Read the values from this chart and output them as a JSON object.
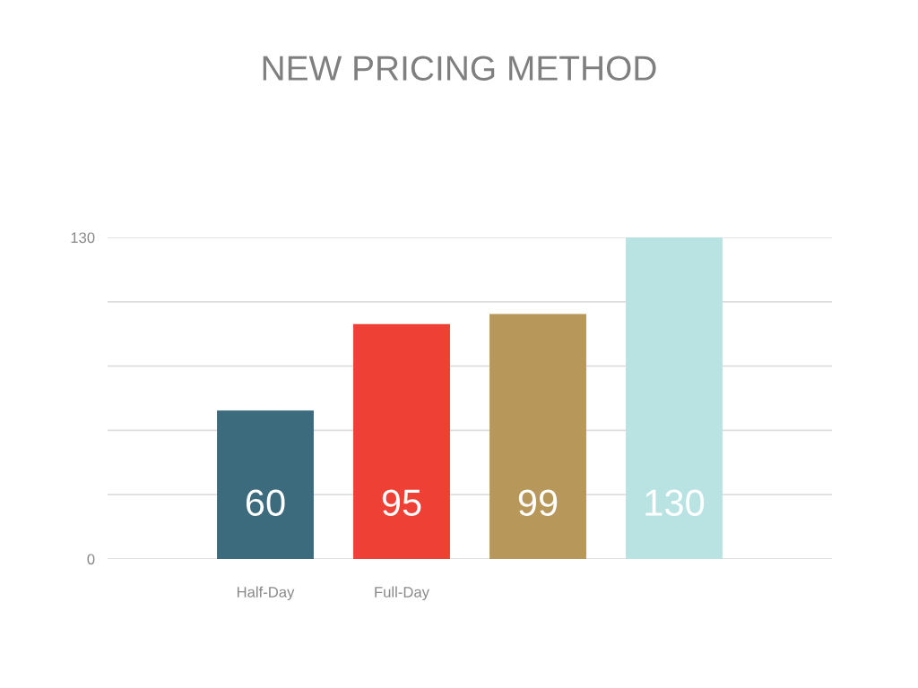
{
  "chart_data": {
    "type": "bar",
    "title": "NEW PRICING METHOD",
    "categories": [
      "Half-Day",
      "Full-Day",
      null,
      null
    ],
    "values": [
      60,
      95,
      99,
      130
    ],
    "colors": [
      "#3d6b7e",
      "#ef4035",
      "#b8975a",
      "#b9e3e3"
    ],
    "ylim": [
      0,
      130
    ],
    "yticks": [
      0,
      {
        "value": 26,
        "label": null
      },
      {
        "value": 52,
        "label": null
      },
      {
        "value": 78,
        "label": null
      },
      {
        "value": 104,
        "label": null
      },
      130
    ],
    "grid": "y",
    "data_labels": true,
    "legend": false
  }
}
